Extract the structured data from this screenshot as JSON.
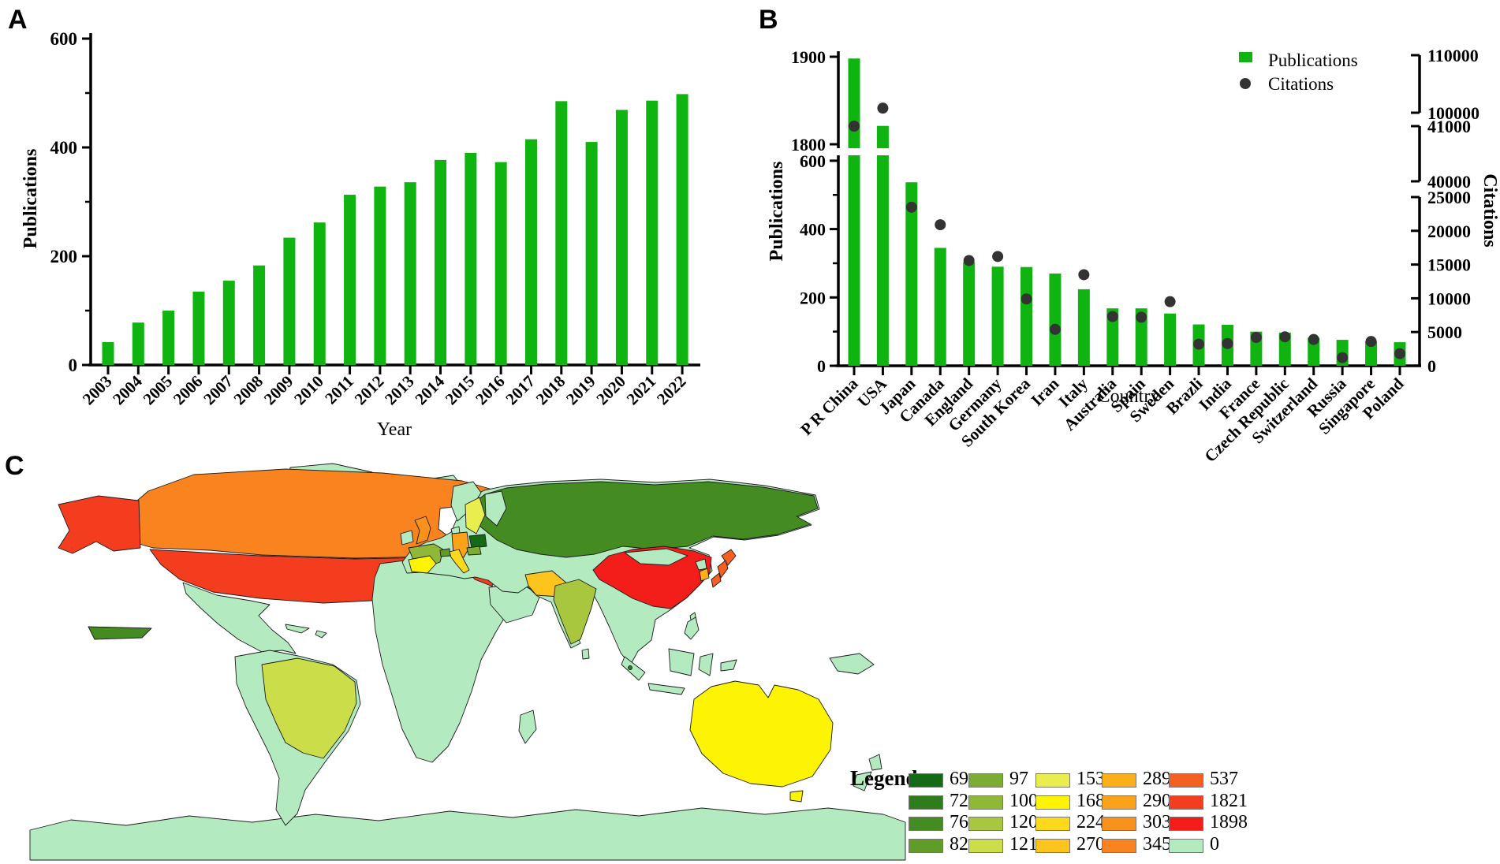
{
  "panels": {
    "a": {
      "label": "A"
    },
    "b": {
      "label": "B"
    },
    "c": {
      "label": "C"
    }
  },
  "chart_data": [
    {
      "id": "panel-a",
      "type": "bar",
      "title": "",
      "xlabel": "Year",
      "ylabel": "Publications",
      "ylim": [
        0,
        600
      ],
      "yticks": [
        0,
        200,
        400,
        600
      ],
      "yticks_minor": [
        100,
        300,
        500
      ],
      "grid": false,
      "bar_color": "#10b410",
      "categories": [
        "2003",
        "2004",
        "2005",
        "2006",
        "2007",
        "2008",
        "2009",
        "2010",
        "2011",
        "2012",
        "2013",
        "2014",
        "2015",
        "2016",
        "2017",
        "2018",
        "2019",
        "2020",
        "2021",
        "2022"
      ],
      "values": [
        42,
        78,
        100,
        135,
        155,
        183,
        234,
        262,
        313,
        328,
        336,
        377,
        390,
        373,
        415,
        485,
        410,
        469,
        486,
        498
      ]
    },
    {
      "id": "panel-b",
      "type": "bar+scatter",
      "title": "",
      "xlabel": "Country",
      "ylabel_left": "Publications",
      "ylabel_right": "Citations",
      "legend": [
        {
          "label": "Publications",
          "marker": "square",
          "color": "#10b410"
        },
        {
          "label": "Citations",
          "marker": "dot",
          "color": "#333333"
        }
      ],
      "left_axis_segments": [
        {
          "ticks": [
            0,
            200,
            400,
            600
          ],
          "ticks_minor": [
            100,
            300,
            500
          ]
        },
        {
          "ticks": [
            1800,
            1900
          ]
        }
      ],
      "right_axis_segments": [
        {
          "ticks": [
            0,
            5000,
            10000,
            15000,
            20000,
            25000
          ]
        },
        {
          "ticks": [
            40000,
            41000
          ]
        },
        {
          "ticks": [
            100000,
            110000
          ]
        }
      ],
      "categories": [
        "P R China",
        "USA",
        "Japan",
        "Canada",
        "England",
        "Germany",
        "South Korea",
        "Iran",
        "Italy",
        "Australia",
        "Spain",
        "Sweden",
        "Brazli",
        "India",
        "France",
        "Czech Republic",
        "Switzerland",
        "Russia",
        "Singapore",
        "Poland"
      ],
      "series": [
        {
          "name": "Publications",
          "values": [
            1898,
            1821,
            537,
            345,
            303,
            290,
            289,
            270,
            224,
            168,
            168,
            153,
            121,
            120,
            100,
            97,
            82,
            76,
            72,
            69
          ]
        },
        {
          "name": "Citations",
          "values": [
            41000,
            100800,
            23500,
            20900,
            15600,
            16200,
            9900,
            5400,
            13500,
            7300,
            7200,
            9500,
            3200,
            3300,
            4200,
            4300,
            3900,
            1200,
            3600,
            1800
          ]
        }
      ]
    },
    {
      "id": "panel-c",
      "type": "choropleth_map",
      "legend_title": "Legend",
      "zero_color": "#b4eac0",
      "legend_columns": [
        [
          {
            "value": "69",
            "color": "#156b15"
          },
          {
            "value": "72",
            "color": "#2f7c1c"
          },
          {
            "value": "76",
            "color": "#448c21"
          },
          {
            "value": "82",
            "color": "#609d28"
          }
        ],
        [
          {
            "value": "97",
            "color": "#7cac31"
          },
          {
            "value": "100",
            "color": "#8fb838"
          },
          {
            "value": "120",
            "color": "#a9c63f"
          },
          {
            "value": "121",
            "color": "#cbdd48"
          }
        ],
        [
          {
            "value": "153",
            "color": "#e9ee4e"
          },
          {
            "value": "168",
            "color": "#fdf403"
          },
          {
            "value": "224",
            "color": "#fcd91d"
          },
          {
            "value": "270",
            "color": "#fcc41c"
          }
        ],
        [
          {
            "value": "289",
            "color": "#fbb019"
          },
          {
            "value": "290",
            "color": "#faa21a"
          },
          {
            "value": "303",
            "color": "#f9921d"
          },
          {
            "value": "345",
            "color": "#f8831f"
          }
        ],
        [
          {
            "value": "537",
            "color": "#f65f22"
          },
          {
            "value": "1821",
            "color": "#f43c1e"
          },
          {
            "value": "1898",
            "color": "#f31d1a"
          },
          {
            "value": "0",
            "color": "#b4eac0"
          }
        ]
      ],
      "country_values": {
        "P R China": 1898,
        "USA": 1821,
        "Japan": 537,
        "Canada": 345,
        "England": 303,
        "Germany": 290,
        "South Korea": 289,
        "Iran": 270,
        "Italy": 224,
        "Australia": 168,
        "Spain": 168,
        "Sweden": 153,
        "Brazil": 121,
        "India": 120,
        "France": 100,
        "Czech Republic": 97,
        "Switzerland": 82,
        "Russia": 76,
        "Singapore": 72,
        "Poland": 69,
        "other": 0
      },
      "country_colors": {
        "china": "#f31d1a",
        "usa": "#f43c1e",
        "japan": "#f65f22",
        "canada": "#f8831f",
        "england": "#f9921d",
        "germany": "#faa21a",
        "south-korea": "#fbb019",
        "iran": "#fcc41c",
        "italy": "#fcd91d",
        "australia": "#fdf403",
        "spain": "#fdf403",
        "sweden": "#e9ee4e",
        "brazil": "#cbdd48",
        "india": "#a9c63f",
        "france": "#8fb838",
        "czech": "#7cac31",
        "switzerland": "#609d28",
        "russia": "#448c21",
        "singapore": "#2f7c1c",
        "poland": "#156b15",
        "none": "#b4eac0"
      }
    }
  ]
}
